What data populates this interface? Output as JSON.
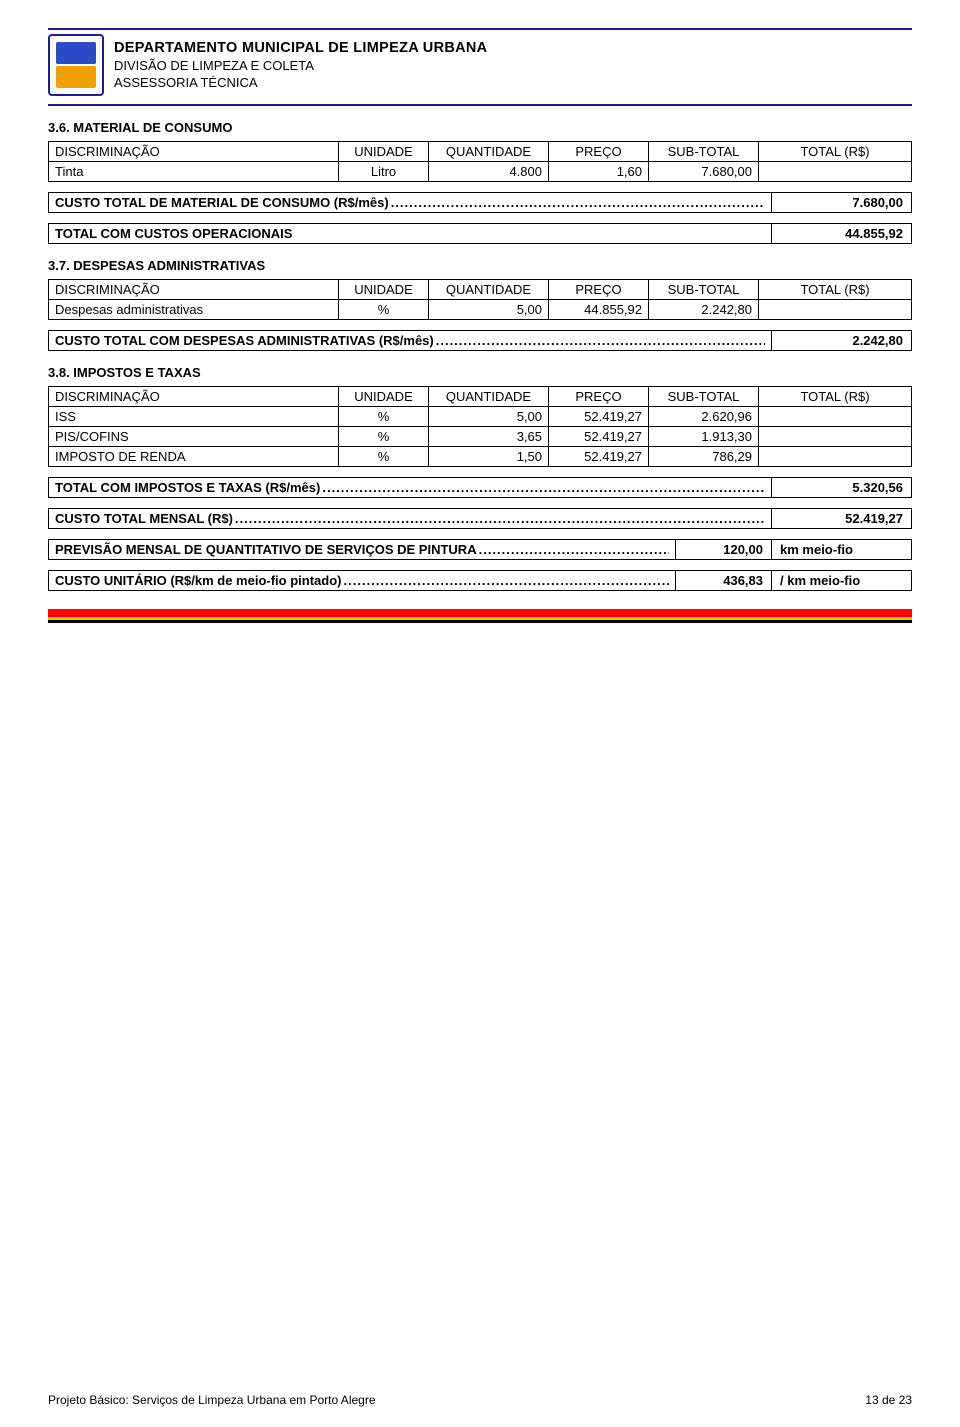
{
  "header": {
    "department": "DEPARTAMENTO MUNICIPAL DE LIMPEZA URBANA",
    "division": "DIVISÃO DE LIMPEZA E COLETA",
    "assessoria": "ASSESSORIA TÉCNICA"
  },
  "columns": {
    "disc": "DISCRIMINAÇÃO",
    "unit": "UNIDADE",
    "qty": "QUANTIDADE",
    "price": "PREÇO",
    "sub": "SUB-TOTAL",
    "tot": "TOTAL (R$)"
  },
  "sec36": {
    "title": "3.6. MATERIAL DE CONSUMO",
    "rows": [
      {
        "disc": "Tinta",
        "unit": "Litro",
        "qty": "4.800",
        "price": "1,60",
        "sub": "7.680,00",
        "tot": ""
      }
    ],
    "summary_label": "CUSTO TOTAL DE MATERIAL DE CONSUMO (R$/mês)",
    "summary_value": "7.680,00"
  },
  "total_op": {
    "label": "TOTAL COM CUSTOS OPERACIONAIS",
    "value": "44.855,92"
  },
  "sec37": {
    "title": "3.7. DESPESAS ADMINISTRATIVAS",
    "rows": [
      {
        "disc": "Despesas administrativas",
        "unit": "%",
        "qty": "5,00",
        "price": "44.855,92",
        "sub": "2.242,80",
        "tot": ""
      }
    ],
    "summary_label": "CUSTO TOTAL COM DESPESAS ADMINISTRATIVAS (R$/mês)",
    "summary_value": "2.242,80"
  },
  "sec38": {
    "title": "3.8. IMPOSTOS E TAXAS",
    "rows": [
      {
        "disc": "ISS",
        "unit": "%",
        "qty": "5,00",
        "price": "52.419,27",
        "sub": "2.620,96",
        "tot": ""
      },
      {
        "disc": "PIS/COFINS",
        "unit": "%",
        "qty": "3,65",
        "price": "52.419,27",
        "sub": "1.913,30",
        "tot": ""
      },
      {
        "disc": "IMPOSTO DE RENDA",
        "unit": "%",
        "qty": "1,50",
        "price": "52.419,27",
        "sub": "786,29",
        "tot": ""
      }
    ],
    "summary_label": "TOTAL COM IMPOSTOS E TAXAS (R$/mês)",
    "summary_value": "5.320,56"
  },
  "custo_mensal": {
    "label": "CUSTO TOTAL MENSAL (R$)",
    "value": "52.419,27"
  },
  "previsao": {
    "label": "PREVISÃO MENSAL DE QUANTITATIVO DE SERVIÇOS DE PINTURA",
    "value": "120,00",
    "unit": "km meio-fio"
  },
  "custo_unit": {
    "label": "CUSTO UNITÁRIO (R$/km de meio-fio pintado)",
    "value": "436,83",
    "unit": "/ km meio-fio"
  },
  "footer": {
    "project": "Projeto Básico: Serviços de Limpeza Urbana em Porto Alegre",
    "page": "13 de 23"
  },
  "dots": "...................................................................................................................................................................................................."
}
